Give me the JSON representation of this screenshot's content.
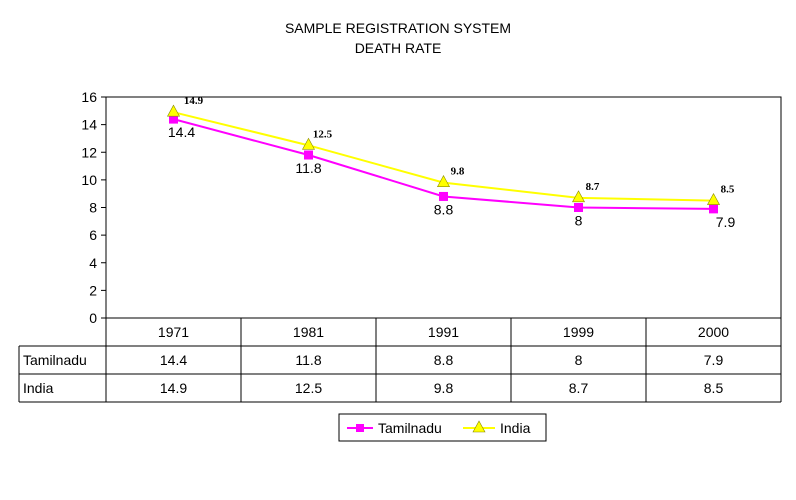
{
  "chart_data": {
    "type": "line",
    "title": [
      "SAMPLE REGISTRATION SYSTEM",
      "DEATH RATE"
    ],
    "categories": [
      "1971",
      "1981",
      "1991",
      "1999",
      "2000"
    ],
    "series": [
      {
        "name": "Tamilnadu",
        "values": [
          14.4,
          11.8,
          8.8,
          8,
          7.9
        ],
        "color": "#ff00ff",
        "marker": "square"
      },
      {
        "name": "India",
        "values": [
          14.9,
          12.5,
          9.8,
          8.7,
          8.5
        ],
        "color": "#ffff00",
        "marker": "triangle"
      }
    ],
    "ylim": [
      0,
      16
    ],
    "yticks": [
      "0",
      "2",
      "4",
      "6",
      "8",
      "10",
      "12",
      "14",
      "16"
    ],
    "data_labels": {
      "Tamilnadu": [
        "14.4",
        "11.8",
        "8.8",
        "8",
        "7.9"
      ],
      "India": [
        "14.9",
        "12.5",
        "9.8",
        "8.7",
        "8.5"
      ]
    },
    "table": {
      "rows": [
        {
          "label": "Tamilnadu",
          "cells": [
            "14.4",
            "11.8",
            "8.8",
            "8",
            "7.9"
          ]
        },
        {
          "label": "India",
          "cells": [
            "14.9",
            "12.5",
            "9.8",
            "8.7",
            "8.5"
          ]
        }
      ]
    },
    "legend": {
      "position": "bottom",
      "entries": [
        "Tamilnadu",
        "India"
      ]
    }
  }
}
